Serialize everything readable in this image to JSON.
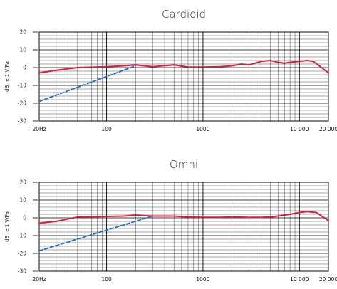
{
  "colors": {
    "response": "#d61f3c",
    "proximity": "#1f6fbf",
    "grid": "#000000",
    "background": "#ffffff"
  },
  "chart_data": [
    {
      "type": "line",
      "title": "Cardioid",
      "ylabel": "dB re 1 V/Pa",
      "xlabel": "",
      "x_scale": "log",
      "xlim": [
        20,
        20000
      ],
      "ylim": [
        -30,
        20
      ],
      "grid": true,
      "x_tick_labels": [
        "20Hz",
        "100",
        "1000",
        "10 000",
        "20 000"
      ],
      "y_tick_labels": [
        "20",
        "10",
        "0",
        "-10",
        "-20",
        "-30"
      ],
      "series": [
        {
          "style": "solid",
          "x": [
            20,
            30,
            50,
            100,
            150,
            200,
            300,
            500,
            700,
            1000,
            1500,
            2000,
            2500,
            3000,
            4000,
            5000,
            6000,
            7000,
            8000,
            10000,
            12000,
            14000,
            17000,
            20000
          ],
          "y": [
            -3,
            -1.5,
            0,
            0.5,
            1,
            1.5,
            0.5,
            1.5,
            0.3,
            0.3,
            0.5,
            1,
            2,
            1.5,
            3.5,
            4,
            3,
            2.5,
            3,
            3.5,
            4,
            3.5,
            0,
            -3
          ]
        },
        {
          "style": "dashed",
          "x": [
            20,
            200
          ],
          "y": [
            -19,
            1
          ]
        }
      ]
    },
    {
      "type": "line",
      "title": "Omni",
      "ylabel": "dB re 1 V/Pa",
      "xlabel": "",
      "x_scale": "log",
      "xlim": [
        20,
        20000
      ],
      "ylim": [
        -30,
        20
      ],
      "grid": true,
      "x_tick_labels": [
        "20Hz",
        "100",
        "1000",
        "10 000",
        "20 000"
      ],
      "y_tick_labels": [
        "20",
        "10",
        "0",
        "-10",
        "-20",
        "-30"
      ],
      "series": [
        {
          "style": "solid",
          "x": [
            20,
            30,
            50,
            100,
            150,
            200,
            300,
            500,
            700,
            1000,
            1500,
            2000,
            3000,
            4000,
            5000,
            6000,
            8000,
            10000,
            12000,
            15000,
            20000
          ],
          "y": [
            -3,
            -2,
            0.5,
            0.8,
            1,
            1.5,
            1,
            1,
            0.5,
            0.3,
            0.3,
            0.5,
            0.3,
            0.3,
            0.5,
            1,
            2,
            3,
            3.5,
            3,
            -1.5
          ]
        },
        {
          "style": "dashed",
          "x": [
            20,
            300
          ],
          "y": [
            -18.5,
            1
          ]
        }
      ]
    }
  ]
}
